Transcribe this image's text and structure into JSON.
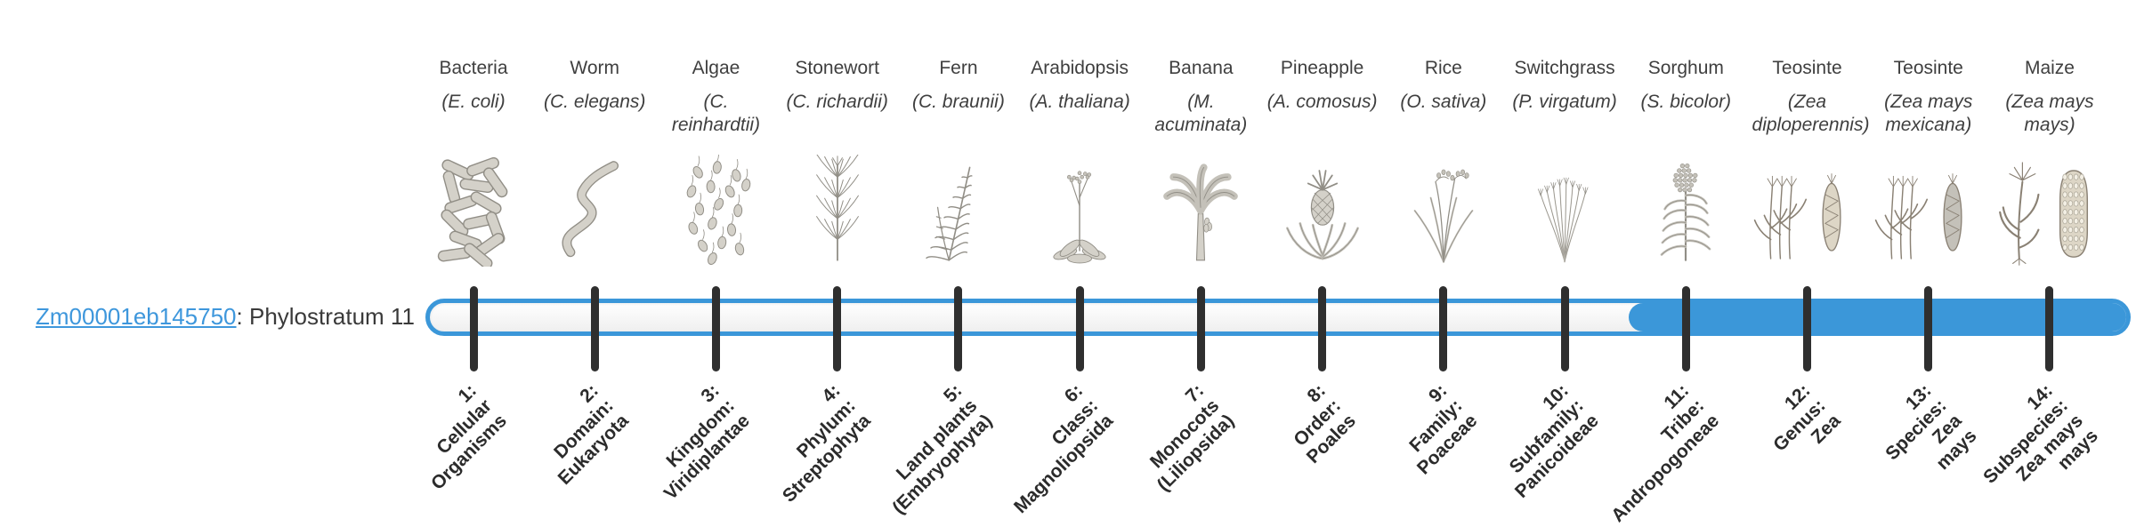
{
  "gene": {
    "id": "Zm00001eb145750",
    "suffix": ": Phylostratum 11",
    "phylostratum": 11
  },
  "timeline": {
    "strata_count": 14,
    "highlight_from_stratum": 11,
    "highlight_to_stratum": 14
  },
  "colors": {
    "accent_blue": "#3b97d9",
    "link_blue": "#3e97dc",
    "tick_dark": "#2f2f2f",
    "label_text": "#3f3f3f",
    "icon_gray": "#918e86"
  },
  "organisms": [
    {
      "common": "Bacteria",
      "species": "(E. coli)",
      "icon": "bacteria-icon",
      "stratum_label": "1:\nCellular\nOrganisms"
    },
    {
      "common": "Worm",
      "species": "(C. elegans)",
      "icon": "worm-icon",
      "stratum_label": "2:\nDomain:\nEukaryota"
    },
    {
      "common": "Algae",
      "species": "(C. reinhardtii)",
      "icon": "algae-icon",
      "stratum_label": "3:\nKingdom:\nViridiplantae"
    },
    {
      "common": "Stonewort",
      "species": "(C. richardii)",
      "icon": "stonewort-icon",
      "stratum_label": "4:\nPhylum:\nStreptophyta"
    },
    {
      "common": "Fern",
      "species": "(C. braunii)",
      "icon": "fern-icon",
      "stratum_label": "5:\nLand plants\n(Embryophyta)"
    },
    {
      "common": "Arabidopsis",
      "species": "(A. thaliana)",
      "icon": "arabidopsis-icon",
      "stratum_label": "6:\nClass:\nMagnoliopsida"
    },
    {
      "common": "Banana",
      "species": "(M. acuminata)",
      "icon": "banana-icon",
      "stratum_label": "7:\nMonocots\n(Liliopsida)"
    },
    {
      "common": "Pineapple",
      "species": "(A. comosus)",
      "icon": "pineapple-icon",
      "stratum_label": "8:\nOrder:\nPoales"
    },
    {
      "common": "Rice",
      "species": "(O. sativa)",
      "icon": "rice-icon",
      "stratum_label": "9:\nFamily:\nPoaceae"
    },
    {
      "common": "Switchgrass",
      "species": "(P. virgatum)",
      "icon": "switchgrass-icon",
      "stratum_label": "10:\nSubfamily:\nPanicoideae"
    },
    {
      "common": "Sorghum",
      "species": "(S. bicolor)",
      "icon": "sorghum-icon",
      "stratum_label": "11:\nTribe:\nAndropogoneae"
    },
    {
      "common": "Teosinte",
      "species": "(Zea diploperennis)",
      "icon": "teosinte-diploperennis-icon",
      "stratum_label": "12:\nGenus:\nZea"
    },
    {
      "common": "Teosinte",
      "species": "(Zea mays mexicana)",
      "icon": "teosinte-mexicana-icon",
      "stratum_label": "13:\nSpecies:\nZea\nmays"
    },
    {
      "common": "Maize",
      "species": "(Zea mays mays)",
      "icon": "maize-icon",
      "stratum_label": "14:\nSubspecies:\nZea mays\nmays"
    }
  ]
}
